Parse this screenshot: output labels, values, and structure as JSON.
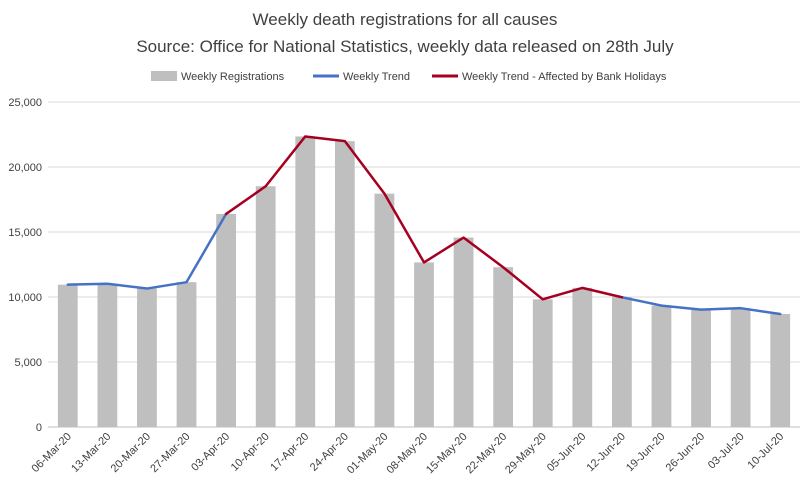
{
  "chart_data": {
    "type": "bar",
    "title": "Weekly death registrations for all causes",
    "subtitle": "Source: Office for National Statistics, weekly data released on 28th July",
    "xlabel": "",
    "ylabel": "",
    "categories": [
      "06-Mar-20",
      "13-Mar-20",
      "20-Mar-20",
      "27-Mar-20",
      "03-Apr-20",
      "10-Apr-20",
      "17-Apr-20",
      "24-Apr-20",
      "01-May-20",
      "08-May-20",
      "15-May-20",
      "22-May-20",
      "29-May-20",
      "05-Jun-20",
      "12-Jun-20",
      "19-Jun-20",
      "26-Jun-20",
      "03-Jul-20",
      "10-Jul-20"
    ],
    "ylim": [
      0,
      25000
    ],
    "yticks": [
      0,
      5000,
      10000,
      15000,
      20000,
      25000
    ],
    "ytick_labels": [
      "0",
      "5,000",
      "10,000",
      "15,000",
      "20,000",
      "25,000"
    ],
    "grid": true,
    "legend_position": "top",
    "series": [
      {
        "name": "Weekly Registrations",
        "kind": "bar",
        "color": "#bfbfbf",
        "values": [
          10950,
          11020,
          10650,
          11140,
          16390,
          18520,
          22350,
          21990,
          17950,
          12660,
          14570,
          12290,
          9820,
          10700,
          9980,
          9340,
          9030,
          9140,
          8690
        ]
      },
      {
        "name": "Weekly Trend",
        "kind": "line",
        "color": "#4472c4",
        "values": [
          10950,
          11020,
          10650,
          11140,
          16390,
          null,
          null,
          null,
          null,
          null,
          null,
          null,
          null,
          null,
          9980,
          9340,
          9030,
          9140,
          8690
        ]
      },
      {
        "name": "Weekly Trend - Affected by Bank Holidays",
        "kind": "line",
        "color": "#a50021",
        "values": [
          null,
          null,
          null,
          null,
          16390,
          18520,
          22350,
          21990,
          17950,
          12660,
          14570,
          12290,
          9820,
          10700,
          9980,
          null,
          null,
          null,
          null
        ]
      }
    ]
  }
}
